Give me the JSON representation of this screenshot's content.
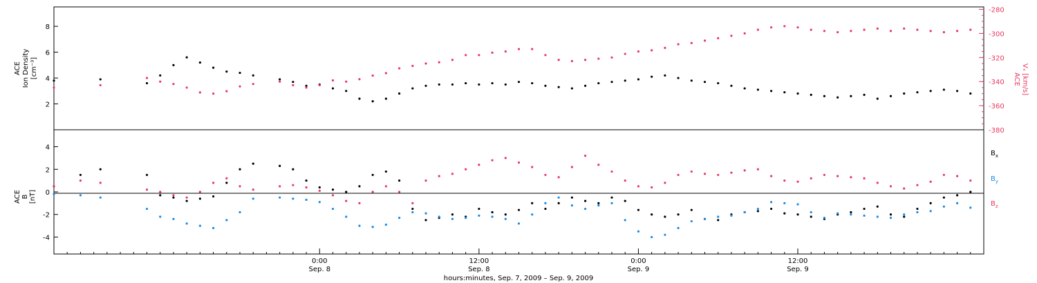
{
  "chart_data": [
    {
      "type": "scatter",
      "panel": "top",
      "ylabel_lines": [
        "ACE",
        "Ion Density",
        "[cm⁻³]"
      ],
      "y2label_lines": [
        "ACE",
        "Vₓ [km/s]"
      ],
      "ylim": [
        0,
        9.5
      ],
      "y2lim": [
        -380,
        -278
      ],
      "yticks": [
        2,
        4,
        6,
        8
      ],
      "y2ticks": [
        -280,
        -300,
        -320,
        -340,
        -360,
        -380
      ],
      "xlim_hours": [
        -20,
        50
      ],
      "series": [
        {
          "name": "",
          "axis": "left",
          "color": "#000000",
          "x": [
            -20,
            -16.5,
            -13,
            -12,
            -11,
            -10,
            -9,
            -8,
            -7,
            -6,
            -5,
            -3,
            -2,
            -1,
            0,
            1,
            2,
            3,
            4,
            5,
            6,
            7,
            8,
            9,
            10,
            11,
            12,
            13,
            14,
            15,
            16,
            17,
            18,
            19,
            20,
            21,
            22,
            23,
            24,
            25,
            26,
            27,
            28,
            29,
            30,
            31,
            32,
            33,
            34,
            35,
            36,
            37,
            38,
            39,
            40,
            41,
            42,
            43,
            44,
            45,
            46,
            47,
            48,
            49
          ],
          "y": [
            3.8,
            3.9,
            3.6,
            4.2,
            5.0,
            5.6,
            5.2,
            4.8,
            4.5,
            4.4,
            4.2,
            3.9,
            3.7,
            3.4,
            3.5,
            3.2,
            3.0,
            2.4,
            2.2,
            2.4,
            2.8,
            3.2,
            3.4,
            3.5,
            3.5,
            3.6,
            3.5,
            3.6,
            3.5,
            3.7,
            3.6,
            3.4,
            3.3,
            3.2,
            3.4,
            3.6,
            3.7,
            3.8,
            3.9,
            4.1,
            4.2,
            4.0,
            3.8,
            3.7,
            3.6,
            3.4,
            3.2,
            3.1,
            3.0,
            2.9,
            2.8,
            2.7,
            2.6,
            2.5,
            2.6,
            2.7,
            2.4,
            2.6,
            2.8,
            2.9,
            3.0,
            3.1,
            3.0,
            2.8
          ]
        },
        {
          "name": "",
          "axis": "right",
          "color": "#e8375f",
          "x": [
            -20,
            -16.5,
            -13,
            -12,
            -11,
            -10,
            -9,
            -8,
            -7,
            -6,
            -5,
            -3,
            -2,
            -1,
            0,
            1,
            2,
            3,
            4,
            5,
            6,
            7,
            8,
            9,
            10,
            11,
            12,
            13,
            14,
            15,
            16,
            17,
            18,
            19,
            20,
            21,
            22,
            23,
            24,
            25,
            26,
            27,
            28,
            29,
            30,
            31,
            32,
            33,
            34,
            35,
            36,
            37,
            38,
            39,
            40,
            41,
            42,
            43,
            44,
            45,
            46,
            47,
            48,
            49
          ],
          "y": [
            -345,
            -343,
            -337,
            -340,
            -342,
            -345,
            -349,
            -350,
            -348,
            -344,
            -342,
            -340,
            -343,
            -345,
            -343,
            -339,
            -340,
            -338,
            -335,
            -333,
            -329,
            -327,
            -325,
            -324,
            -322,
            -318,
            -318,
            -316,
            -315,
            -313,
            -313,
            -318,
            -322,
            -323,
            -322,
            -321,
            -320,
            -317,
            -315,
            -314,
            -312,
            -309,
            -308,
            -306,
            -304,
            -302,
            -300,
            -297,
            -295,
            -294,
            -295,
            -297,
            -298,
            -299,
            -298,
            -297,
            -296,
            -298,
            -296,
            -297,
            -298,
            -299,
            -298,
            -297
          ]
        }
      ]
    },
    {
      "type": "scatter",
      "panel": "bottom",
      "ylabel_lines": [
        "ACE",
        "B",
        "[nT]"
      ],
      "ylim": [
        -5.5,
        5.5
      ],
      "yticks": [
        -4,
        -2,
        0,
        2,
        4
      ],
      "xlim_hours": [
        -20,
        50
      ],
      "xticks": [
        {
          "hour": 0,
          "time": "0:00",
          "date": "Sep. 8"
        },
        {
          "hour": 12,
          "time": "12:00",
          "date": "Sep. 8"
        },
        {
          "hour": 24,
          "time": "0:00",
          "date": "Sep. 9"
        },
        {
          "hour": 36,
          "time": "12:00",
          "date": "Sep. 9"
        }
      ],
      "xlabel": "hours:minutes, Sep. 7, 2009 – Sep. 9, 2009",
      "series": [
        {
          "name": "Bx",
          "color": "#000000",
          "x": [
            -20,
            -18,
            -16.5,
            -13,
            -12,
            -11,
            -10,
            -9,
            -8,
            -7,
            -6,
            -5,
            -3,
            -2,
            -1,
            0,
            1,
            2,
            3,
            4,
            5,
            6,
            7,
            8,
            9,
            10,
            11,
            12,
            13,
            14,
            15,
            16,
            17,
            18,
            19,
            20,
            21,
            22,
            23,
            24,
            25,
            26,
            27,
            28,
            29,
            30,
            31,
            32,
            33,
            34,
            35,
            36,
            37,
            38,
            39,
            40,
            41,
            42,
            43,
            44,
            45,
            46,
            47,
            48,
            49
          ],
          "y": [
            0.5,
            1.5,
            2.0,
            1.5,
            -0.3,
            -0.5,
            -0.8,
            -0.6,
            -0.4,
            0.8,
            2.0,
            2.5,
            2.3,
            2.0,
            1.0,
            0.4,
            0.2,
            0.0,
            0.5,
            1.5,
            1.8,
            1.0,
            -1.5,
            -2.5,
            -2.3,
            -2.0,
            -2.2,
            -1.5,
            -1.8,
            -2.0,
            -1.6,
            -1.0,
            -1.5,
            -1.0,
            -0.5,
            -0.8,
            -1.0,
            -0.5,
            -0.8,
            -1.6,
            -2.0,
            -2.2,
            -2.0,
            -1.6,
            -2.4,
            -2.5,
            -2.0,
            -1.8,
            -1.7,
            -1.5,
            -1.9,
            -2.0,
            -2.2,
            -2.4,
            -2.0,
            -1.8,
            -1.5,
            -1.3,
            -2.0,
            -2.2,
            -1.5,
            -1.0,
            -0.5,
            -0.3,
            0.0
          ]
        },
        {
          "name": "By",
          "color": "#1a8ae5",
          "x": [
            -20,
            -18,
            -16.5,
            -13,
            -12,
            -11,
            -10,
            -9,
            -8,
            -7,
            -6,
            -5,
            -3,
            -2,
            -1,
            0,
            1,
            2,
            3,
            4,
            5,
            6,
            7,
            8,
            9,
            10,
            11,
            12,
            13,
            14,
            15,
            16,
            17,
            18,
            19,
            20,
            21,
            22,
            23,
            24,
            25,
            26,
            27,
            28,
            29,
            30,
            31,
            32,
            33,
            34,
            35,
            36,
            37,
            38,
            39,
            40,
            41,
            42,
            43,
            44,
            45,
            46,
            47,
            48,
            49
          ],
          "y": [
            -0.2,
            -0.3,
            -0.5,
            -1.5,
            -2.2,
            -2.4,
            -2.8,
            -3.0,
            -3.2,
            -2.5,
            -1.8,
            -0.6,
            -0.5,
            -0.6,
            -0.7,
            -0.9,
            -1.5,
            -2.2,
            -3.0,
            -3.1,
            -2.9,
            -2.3,
            -1.8,
            -1.9,
            -2.2,
            -2.4,
            -2.3,
            -2.1,
            -2.2,
            -2.4,
            -2.8,
            -2.0,
            -1.0,
            -0.5,
            -1.2,
            -1.5,
            -1.2,
            -1.0,
            -2.5,
            -3.5,
            -4.0,
            -3.8,
            -3.2,
            -2.6,
            -2.4,
            -2.2,
            -2.1,
            -1.8,
            -1.5,
            -0.9,
            -1.0,
            -1.1,
            -1.8,
            -2.3,
            -1.9,
            -2.0,
            -2.1,
            -2.2,
            -2.3,
            -2.0,
            -1.8,
            -1.7,
            -1.3,
            -1.0,
            -1.4
          ]
        },
        {
          "name": "Bz",
          "color": "#e8375f",
          "x": [
            -20,
            -18,
            -16.5,
            -13,
            -12,
            -11,
            -10,
            -9,
            -8,
            -7,
            -6,
            -5,
            -3,
            -2,
            -1,
            0,
            1,
            2,
            3,
            4,
            5,
            6,
            7,
            8,
            9,
            10,
            11,
            12,
            13,
            14,
            15,
            16,
            17,
            18,
            19,
            20,
            21,
            22,
            23,
            24,
            25,
            26,
            27,
            28,
            29,
            30,
            31,
            32,
            33,
            34,
            35,
            36,
            37,
            38,
            39,
            40,
            41,
            42,
            43,
            44,
            45,
            46,
            47,
            48,
            49
          ],
          "y": [
            0.5,
            1.0,
            0.8,
            0.2,
            0.0,
            -0.3,
            -0.5,
            0.0,
            0.8,
            1.2,
            0.5,
            0.2,
            0.5,
            0.6,
            0.4,
            0.1,
            -0.3,
            -0.8,
            -1.0,
            0.0,
            0.5,
            0.0,
            -1.0,
            1.0,
            1.4,
            1.6,
            2.0,
            2.4,
            2.8,
            3.0,
            2.6,
            2.2,
            1.5,
            1.3,
            2.2,
            3.2,
            2.4,
            1.8,
            1.0,
            0.5,
            0.4,
            0.8,
            1.5,
            1.8,
            1.6,
            1.5,
            1.7,
            1.9,
            2.0,
            1.4,
            1.0,
            0.9,
            1.2,
            1.5,
            1.4,
            1.3,
            1.2,
            0.8,
            0.5,
            0.3,
            0.6,
            0.9,
            1.5,
            1.4,
            1.0
          ]
        }
      ],
      "legend": {
        "placement": "right",
        "entries": [
          "B",
          "B",
          "B"
        ],
        "subscripts": [
          "x",
          "y",
          "z"
        ]
      }
    }
  ]
}
